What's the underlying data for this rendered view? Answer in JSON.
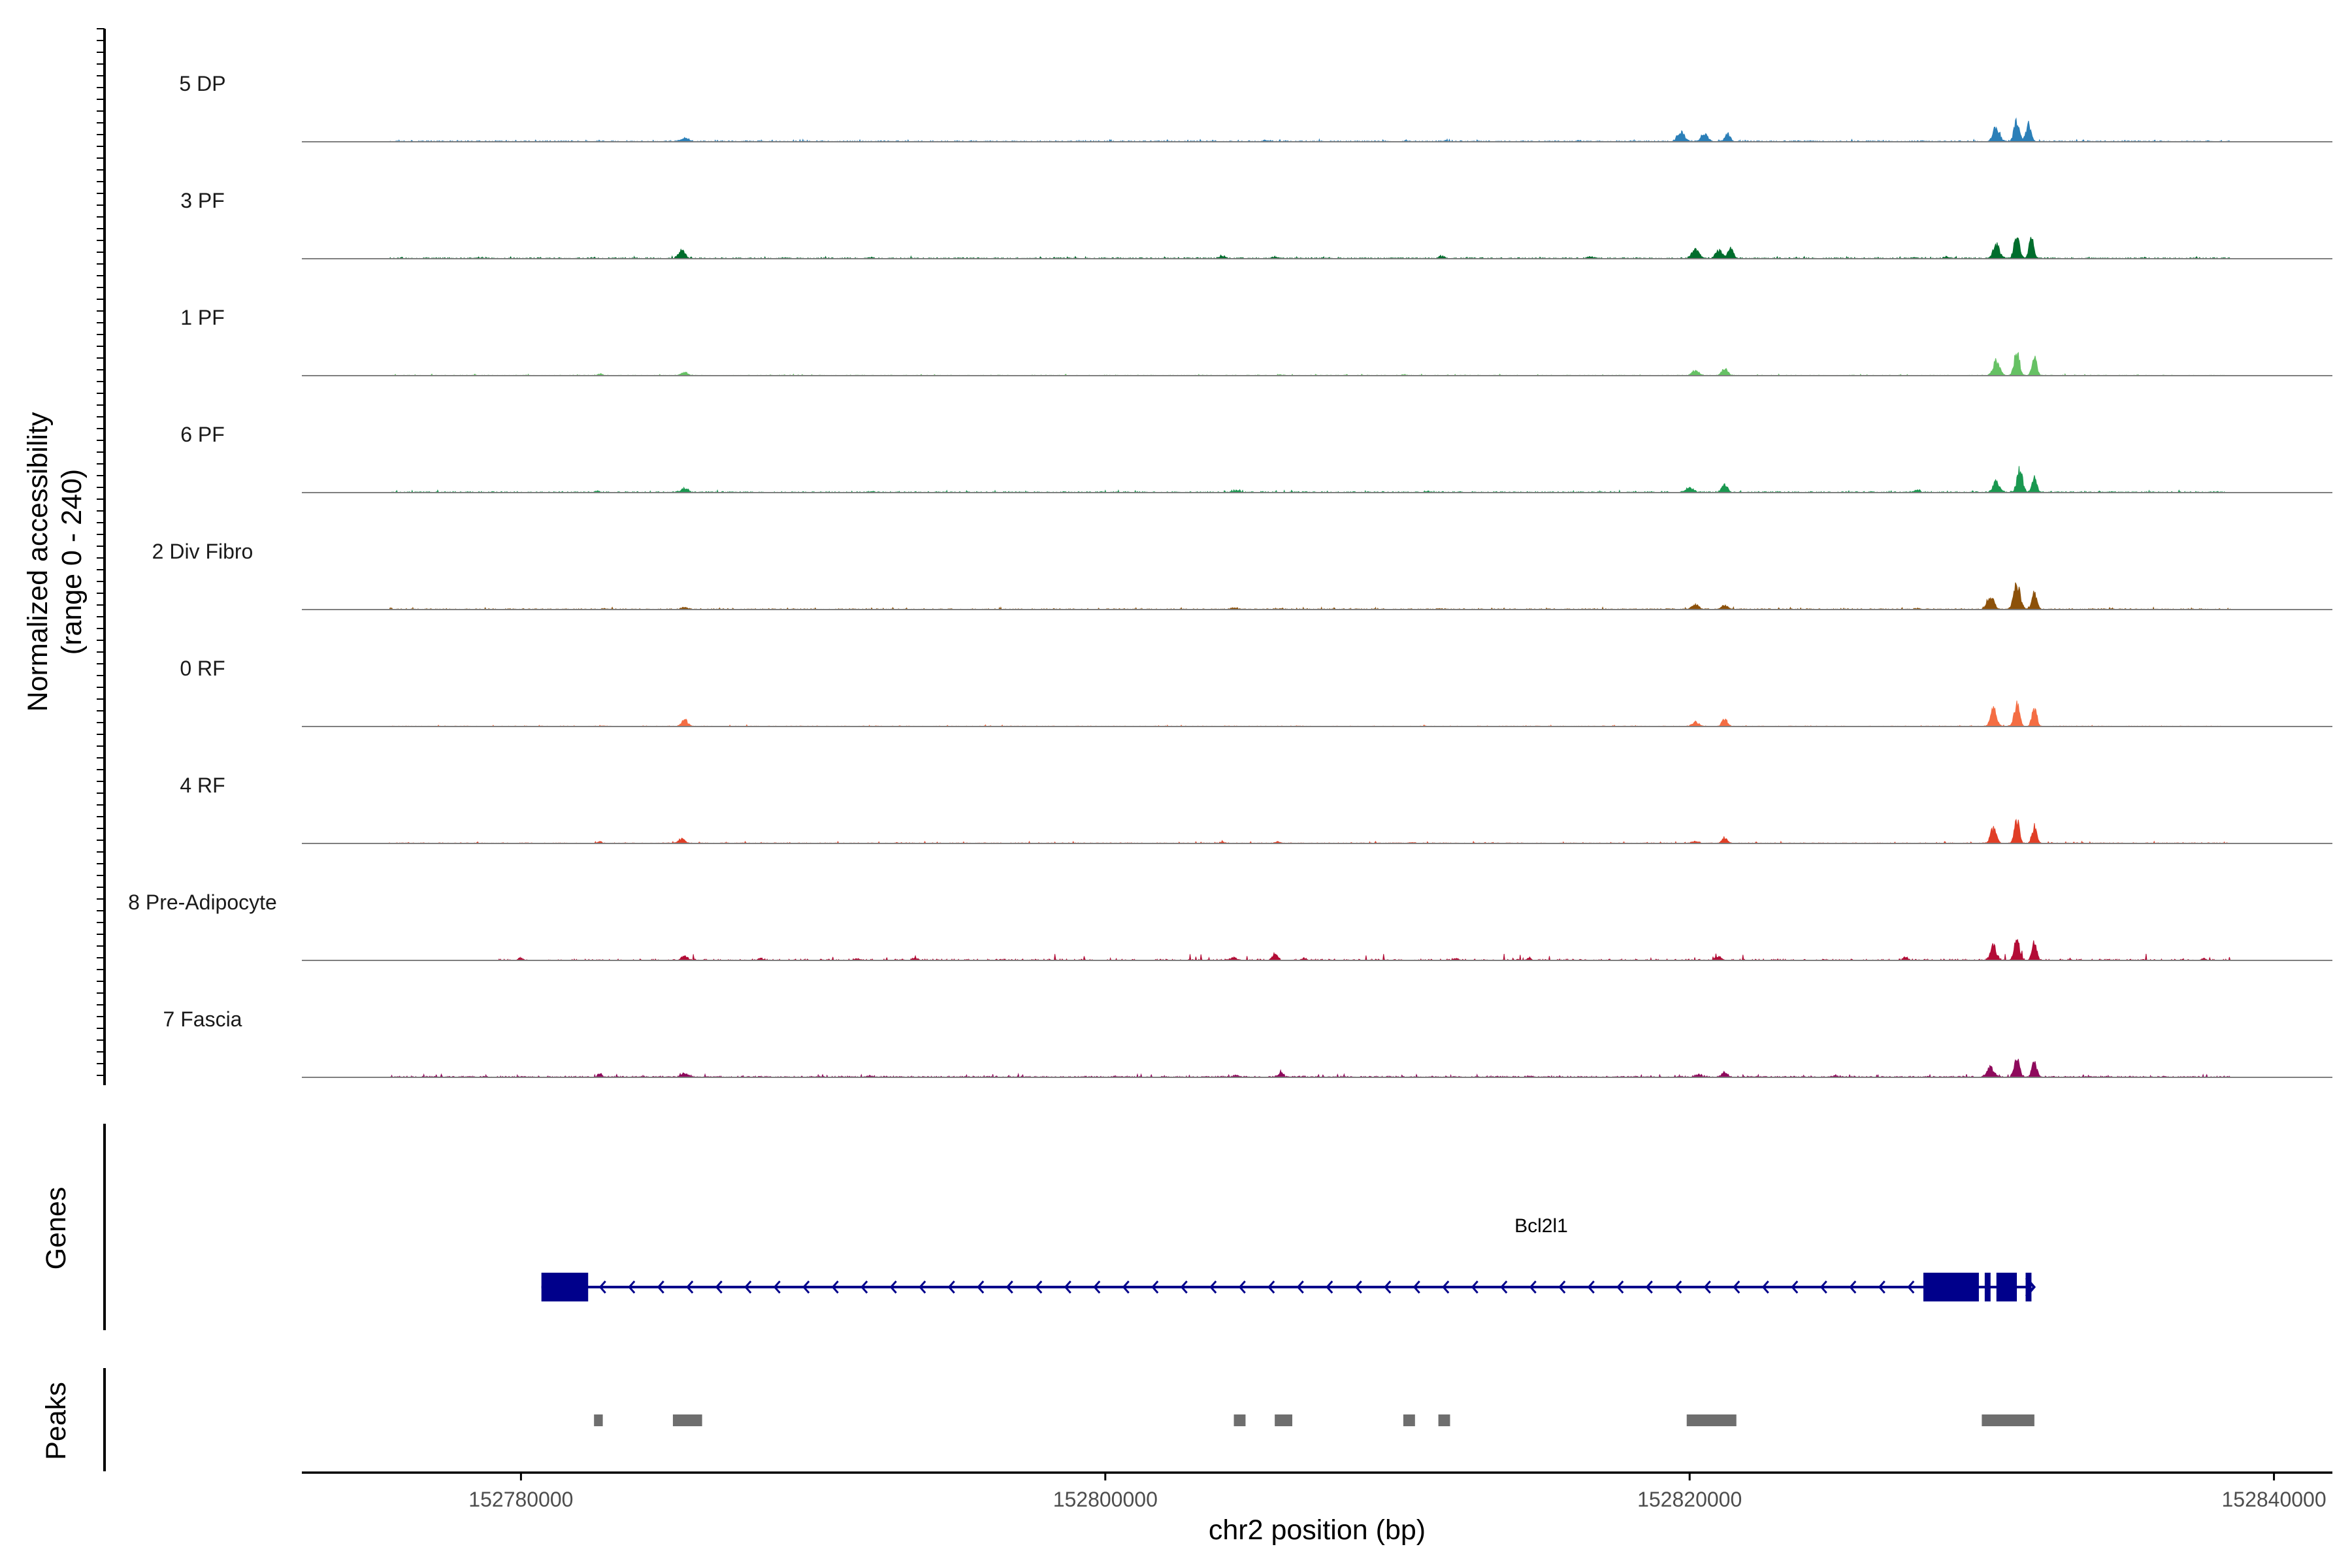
{
  "chart_data": {
    "type": "area",
    "title": "",
    "ylabel": "Normalized accessibility",
    "ylabel_range": "(range 0 - 240)",
    "y_range": [
      0,
      240
    ],
    "xlabel": "chr2 position (bp)",
    "x_range": [
      152772500,
      152842000
    ],
    "x_ticks": [
      152780000,
      152800000,
      152820000,
      152840000
    ],
    "x_tick_labels": [
      "152780000",
      "152800000",
      "152820000",
      "152840000"
    ],
    "tracks": [
      {
        "name": "5 DP",
        "color": "#2b7fb8",
        "baseline": 2,
        "noise": 2,
        "range": [
          152775500,
          152838500
        ],
        "density": 0.55,
        "peaks": [
          [
            152782700,
            2,
            60
          ],
          [
            152785600,
            9,
            130
          ],
          [
            152802200,
            1.5,
            80
          ],
          [
            152803700,
            2,
            80
          ],
          [
            152805500,
            2,
            90
          ],
          [
            152810300,
            2,
            80
          ],
          [
            152811600,
            2,
            80
          ],
          [
            152816200,
            1.5,
            80
          ],
          [
            152819700,
            28,
            120
          ],
          [
            152820500,
            22,
            110
          ],
          [
            152821300,
            20,
            90
          ],
          [
            152828000,
            2,
            100
          ],
          [
            152830500,
            40,
            110
          ],
          [
            152831200,
            64,
            90
          ],
          [
            152831600,
            52,
            80
          ]
        ]
      },
      {
        "name": "3 PF",
        "color": "#006d2c",
        "baseline": 2,
        "noise": 2,
        "range": [
          152775500,
          152838500
        ],
        "density": 0.6,
        "peaks": [
          [
            152782500,
            2,
            60
          ],
          [
            152785500,
            22,
            110
          ],
          [
            152789000,
            2,
            70
          ],
          [
            152792000,
            3,
            60
          ],
          [
            152804000,
            8,
            110
          ],
          [
            152805800,
            4,
            100
          ],
          [
            152811500,
            8,
            80
          ],
          [
            152816600,
            6,
            90
          ],
          [
            152820200,
            28,
            120
          ],
          [
            152821000,
            22,
            110
          ],
          [
            152821400,
            28,
            90
          ],
          [
            152827700,
            3,
            100
          ],
          [
            152828800,
            4,
            100
          ],
          [
            152830500,
            38,
            110
          ],
          [
            152831200,
            68,
            90
          ],
          [
            152831700,
            55,
            80
          ]
        ]
      },
      {
        "name": "1 PF",
        "color": "#66c164",
        "baseline": 1,
        "noise": 1.5,
        "range": [
          152775500,
          152838500
        ],
        "density": 0.5,
        "peaks": [
          [
            152782700,
            5,
            70
          ],
          [
            152785600,
            9,
            110
          ],
          [
            152806000,
            2,
            80
          ],
          [
            152810200,
            2,
            80
          ],
          [
            152820200,
            14,
            110
          ],
          [
            152821200,
            20,
            100
          ],
          [
            152830500,
            42,
            110
          ],
          [
            152831200,
            68,
            90
          ],
          [
            152831800,
            48,
            80
          ]
        ]
      },
      {
        "name": "6 PF",
        "color": "#1a9850",
        "baseline": 2,
        "noise": 2,
        "range": [
          152775500,
          152838500
        ],
        "density": 0.55,
        "peaks": [
          [
            152782600,
            5,
            70
          ],
          [
            152785600,
            12,
            110
          ],
          [
            152792000,
            3,
            80
          ],
          [
            152804500,
            4,
            120
          ],
          [
            152811000,
            3,
            80
          ],
          [
            152820000,
            14,
            120
          ],
          [
            152821200,
            20,
            100
          ],
          [
            152827800,
            6,
            100
          ],
          [
            152830500,
            30,
            110
          ],
          [
            152831300,
            68,
            90
          ],
          [
            152831800,
            42,
            80
          ]
        ]
      },
      {
        "name": "2 Div Fibro",
        "color": "#8c510a",
        "baseline": 1.5,
        "noise": 2,
        "range": [
          152775500,
          152838500
        ],
        "density": 0.55,
        "peaks": [
          [
            152782800,
            2,
            60
          ],
          [
            152785600,
            6,
            110
          ],
          [
            152804400,
            4,
            110
          ],
          [
            152806000,
            2,
            90
          ],
          [
            152811500,
            2,
            80
          ],
          [
            152820200,
            14,
            120
          ],
          [
            152821200,
            12,
            100
          ],
          [
            152827800,
            3,
            100
          ],
          [
            152830300,
            40,
            110
          ],
          [
            152831200,
            75,
            110
          ],
          [
            152831800,
            45,
            90
          ]
        ]
      },
      {
        "name": "0 RF",
        "color": "#f46d43",
        "baseline": 1,
        "noise": 1.5,
        "range": [
          152775500,
          152838500
        ],
        "density": 0.5,
        "peaks": [
          [
            152782800,
            2,
            60
          ],
          [
            152785600,
            20,
            100
          ],
          [
            152792200,
            1.5,
            70
          ],
          [
            152820200,
            12,
            110
          ],
          [
            152821200,
            22,
            90
          ],
          [
            152830400,
            48,
            100
          ],
          [
            152831200,
            62,
            90
          ],
          [
            152831800,
            55,
            80
          ]
        ]
      },
      {
        "name": "4 RF",
        "color": "#e03e26",
        "baseline": 1,
        "noise": 2,
        "range": [
          152775500,
          152838500
        ],
        "density": 0.6,
        "peaks": [
          [
            152782700,
            7,
            60
          ],
          [
            152785500,
            14,
            100
          ],
          [
            152804000,
            3,
            90
          ],
          [
            152805900,
            4,
            90
          ],
          [
            152810500,
            2,
            80
          ],
          [
            152820200,
            6,
            110
          ],
          [
            152821200,
            16,
            90
          ],
          [
            152830400,
            40,
            100
          ],
          [
            152831200,
            68,
            80
          ],
          [
            152831800,
            48,
            80
          ]
        ]
      },
      {
        "name": "8 Pre-Adipocyte",
        "color": "#b30c36",
        "baseline": 0,
        "noise": 8,
        "range": [
          152779000,
          152838500
        ],
        "density": 0.35,
        "peaks": [
          [
            152780000,
            6,
            80
          ],
          [
            152785600,
            14,
            100
          ],
          [
            152788200,
            6,
            80
          ],
          [
            152791500,
            5,
            90
          ],
          [
            152793500,
            6,
            90
          ],
          [
            152804400,
            8,
            100
          ],
          [
            152805800,
            18,
            90
          ],
          [
            152806800,
            6,
            80
          ],
          [
            152812000,
            6,
            80
          ],
          [
            152814500,
            8,
            60
          ],
          [
            152821000,
            10,
            100
          ],
          [
            152827400,
            8,
            80
          ],
          [
            152830400,
            40,
            100
          ],
          [
            152831200,
            60,
            90
          ],
          [
            152831800,
            50,
            80
          ],
          [
            152837600,
            5,
            80
          ]
        ]
      },
      {
        "name": "7 Fascia",
        "color": "#8e0a5c",
        "baseline": 2,
        "noise": 3,
        "range": [
          152775500,
          152838500
        ],
        "density": 0.6,
        "peaks": [
          [
            152782700,
            9,
            70
          ],
          [
            152785600,
            11,
            110
          ],
          [
            152792000,
            3,
            90
          ],
          [
            152804500,
            4,
            110
          ],
          [
            152806000,
            12,
            90
          ],
          [
            152814500,
            3,
            80
          ],
          [
            152820300,
            6,
            110
          ],
          [
            152821200,
            12,
            100
          ],
          [
            152825000,
            4,
            80
          ],
          [
            152830300,
            30,
            110
          ],
          [
            152831200,
            48,
            90
          ],
          [
            152831800,
            44,
            80
          ]
        ]
      }
    ],
    "genes": [
      {
        "name": "Bcl2l1",
        "start": 152780700,
        "end": 152831700,
        "strand": "-",
        "color": "#00008b",
        "exons": [
          [
            152780700,
            152782300
          ],
          [
            152828000,
            152829900
          ],
          [
            152830100,
            152830300
          ],
          [
            152830500,
            152831200
          ],
          [
            152831500,
            152831700
          ]
        ]
      }
    ],
    "peaks_regions": [
      [
        152782500,
        152782800
      ],
      [
        152785200,
        152786200
      ],
      [
        152804400,
        152804800
      ],
      [
        152805800,
        152806400
      ],
      [
        152810200,
        152810600
      ],
      [
        152811400,
        152811800
      ],
      [
        152819900,
        152821600
      ],
      [
        152830000,
        152831800
      ]
    ],
    "panel_labels": {
      "genes": "Genes",
      "peaks": "Peaks"
    },
    "colors": {
      "axis": "#000000",
      "baseline": "#7f7f7f",
      "peak_region": "#6e6e6e",
      "tick_text": "#4d4d4d"
    }
  }
}
